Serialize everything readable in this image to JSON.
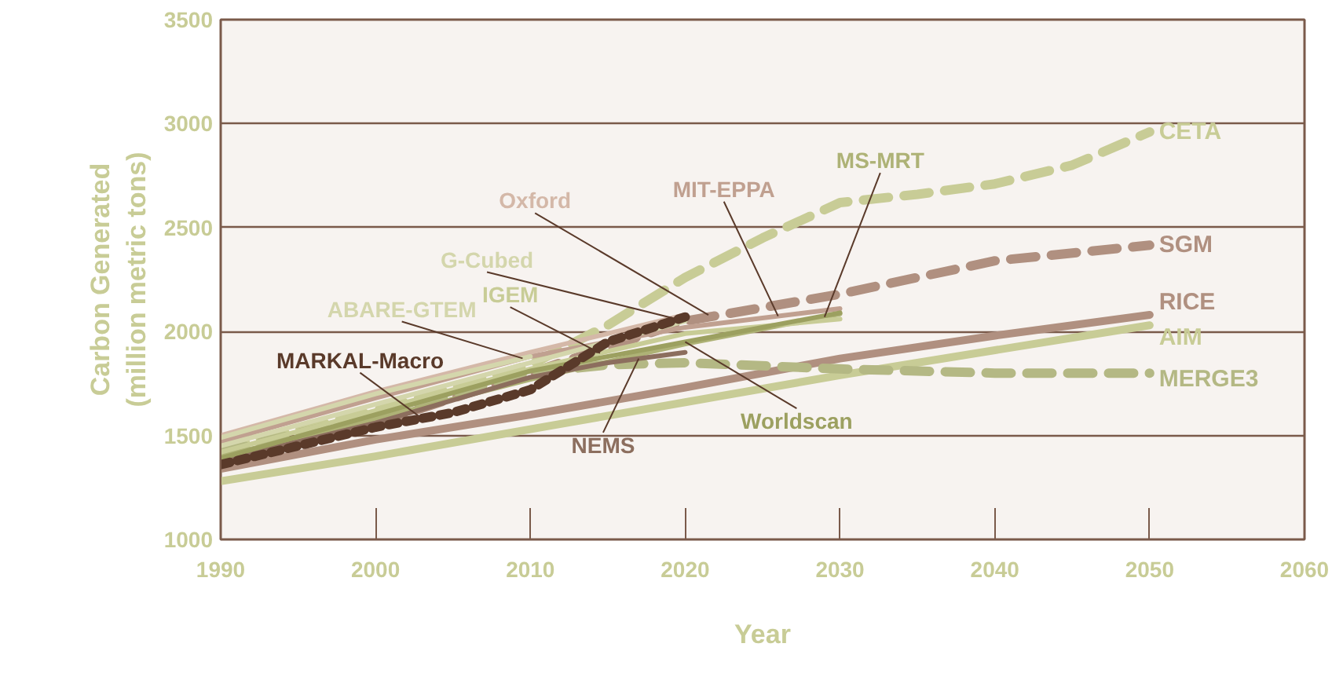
{
  "chart_data": {
    "type": "line",
    "xlabel": "Year",
    "ylabel": "Carbon Generated\n(million metric tons)",
    "xlim": [
      1990,
      2060
    ],
    "ylim": [
      1000,
      3500
    ],
    "xticks": [
      1990,
      2000,
      2010,
      2020,
      2030,
      2040,
      2050,
      2060
    ],
    "yticks": [
      1000,
      1500,
      2000,
      2500,
      3000,
      3500
    ],
    "grid": "y",
    "marker": "none",
    "series": [
      {
        "name": "CETA",
        "color": "#c8cc96",
        "line_style": "dashed",
        "x": [
          1990,
          2000,
          2010,
          2015,
          2020,
          2025,
          2030,
          2035,
          2040,
          2045,
          2050
        ],
        "values": [
          1440,
          1620,
          1840,
          2030,
          2260,
          2450,
          2620,
          2660,
          2710,
          2800,
          2960
        ]
      },
      {
        "name": "SGM",
        "color": "#b09080",
        "line_style": "dashed",
        "x": [
          1990,
          2000,
          2010,
          2020,
          2030,
          2040,
          2050
        ],
        "values": [
          1380,
          1560,
          1800,
          2050,
          2180,
          2340,
          2415
        ]
      },
      {
        "name": "RICE",
        "color": "#b09080",
        "line_style": "solid",
        "x": [
          1990,
          2000,
          2010,
          2020,
          2030,
          2040,
          2050
        ],
        "values": [
          1340,
          1480,
          1600,
          1730,
          1870,
          1980,
          2080
        ]
      },
      {
        "name": "AIM",
        "color": "#c8cc96",
        "line_style": "solid",
        "x": [
          1990,
          2000,
          2010,
          2020,
          2030,
          2040,
          2050
        ],
        "values": [
          1280,
          1400,
          1530,
          1660,
          1790,
          1910,
          2030
        ]
      },
      {
        "name": "MERGE3",
        "color": "#b4b884",
        "line_style": "dashed",
        "x": [
          1990,
          2000,
          2010,
          2015,
          2020,
          2030,
          2040,
          2050
        ],
        "values": [
          1420,
          1600,
          1800,
          1840,
          1850,
          1820,
          1800,
          1800
        ]
      },
      {
        "name": "MS-MRT",
        "color": "#aeb276",
        "line_style": "solid",
        "x": [
          1990,
          2000,
          2010,
          2020,
          2030
        ],
        "values": [
          1400,
          1580,
          1770,
          1940,
          2085
        ]
      },
      {
        "name": "MIT-EPPA",
        "color": "#c0a090",
        "line_style": "solid",
        "x": [
          1990,
          2000,
          2010,
          2020,
          2030
        ],
        "values": [
          1470,
          1680,
          1880,
          2020,
          2110
        ]
      },
      {
        "name": "Oxford",
        "color": "#d4b8a8",
        "line_style": "solid",
        "x": [
          1990,
          2000,
          2010,
          2020
        ],
        "values": [
          1500,
          1710,
          1900,
          2080
        ]
      },
      {
        "name": "G-Cubed",
        "color": "#d4d6ac",
        "line_style": "solid",
        "x": [
          1990,
          2000,
          2010,
          2020
        ],
        "values": [
          1450,
          1650,
          1850,
          2050
        ]
      },
      {
        "name": "IGEM",
        "color": "#c8cc96",
        "line_style": "solid",
        "x": [
          1990,
          2000,
          2010,
          2020,
          2030
        ],
        "values": [
          1420,
          1620,
          1820,
          1990,
          2060
        ]
      },
      {
        "name": "ABARE-GTEM",
        "color": "#d4d6ac",
        "line_style": "solid",
        "x": [
          1990,
          2000,
          2010
        ],
        "values": [
          1490,
          1700,
          1880
        ]
      },
      {
        "name": "MARKAL-Macro",
        "color": "#5a3a2a",
        "line_style": "dotted",
        "x": [
          1990,
          2000,
          2005,
          2010,
          2015,
          2020
        ],
        "values": [
          1360,
          1540,
          1610,
          1720,
          1950,
          2070
        ]
      },
      {
        "name": "NEMS",
        "color": "#8c6e5e",
        "line_style": "solid",
        "x": [
          1990,
          2000,
          2010,
          2015,
          2020
        ],
        "values": [
          1380,
          1560,
          1780,
          1850,
          1900
        ]
      },
      {
        "name": "Worldscan",
        "color": "#9ca060",
        "line_style": "solid",
        "x": [
          1990,
          2010,
          2020,
          2030
        ],
        "values": [
          1390,
          1810,
          1950,
          2090
        ]
      }
    ]
  }
}
